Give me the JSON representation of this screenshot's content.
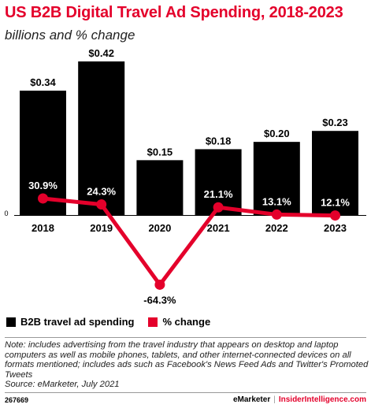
{
  "header": {
    "title": "US B2B Digital Travel Ad Spending, 2018-2023",
    "subtitle": "billions and % change"
  },
  "colors": {
    "bar": "#000000",
    "line": "#e4002b",
    "title": "#e4002b"
  },
  "chart_data": {
    "type": "bar",
    "categories": [
      "2018",
      "2019",
      "2020",
      "2021",
      "2022",
      "2023"
    ],
    "series": [
      {
        "name": "B2B travel ad spending",
        "type": "bar",
        "values": [
          0.34,
          0.42,
          0.15,
          0.18,
          0.2,
          0.23
        ],
        "labels": [
          "$0.34",
          "$0.42",
          "$0.15",
          "$0.18",
          "$0.20",
          "$0.23"
        ]
      },
      {
        "name": "% change",
        "type": "line",
        "values": [
          30.9,
          24.3,
          -64.3,
          21.1,
          13.1,
          12.1
        ],
        "labels": [
          "30.9%",
          "24.3%",
          "-64.3%",
          "21.1%",
          "13.1%",
          "12.1%"
        ]
      }
    ],
    "zero_label": "0",
    "legend_position": "bottom-left",
    "grid": false
  },
  "legend": [
    {
      "label": "B2B travel ad spending",
      "color": "#000000"
    },
    {
      "label": "% change",
      "color": "#e4002b"
    }
  ],
  "footer": {
    "note": "Note: includes advertising from the travel industry that appears on desktop and laptop computers as well as mobile phones, tablets, and other internet-connected devices on all formats mentioned; includes ads such as Facebook's News Feed Ads and Twitter's Promoted Tweets",
    "source": "Source: eMarketer, July 2021",
    "chart_id": "267669",
    "brand": "eMarketer",
    "separator": "|",
    "site": "InsiderIntelligence.com"
  }
}
